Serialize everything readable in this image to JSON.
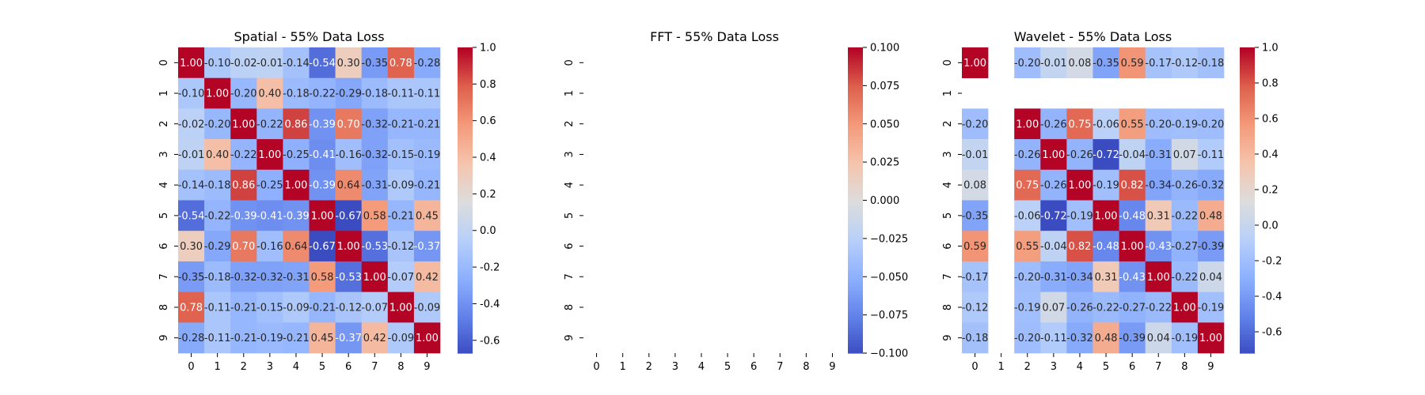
{
  "chart_data": [
    {
      "type": "heatmap",
      "title": "Spatial - 55% Data Loss",
      "xlabel": "",
      "ylabel": "",
      "x": [
        "0",
        "1",
        "2",
        "3",
        "4",
        "5",
        "6",
        "7",
        "8",
        "9"
      ],
      "y": [
        "0",
        "1",
        "2",
        "3",
        "4",
        "5",
        "6",
        "7",
        "8",
        "9"
      ],
      "colormap": "coolwarm",
      "vmin": -0.67,
      "vmax": 1.0,
      "colorbar_ticks": [
        "-0.6",
        "-0.4",
        "-0.2",
        "0.0",
        "0.2",
        "0.4",
        "0.6",
        "0.8",
        "1.0"
      ],
      "annotations_format": "0.00",
      "values": [
        [
          1.0,
          -0.1,
          -0.02,
          -0.01,
          -0.14,
          -0.54,
          0.3,
          -0.35,
          0.78,
          -0.28
        ],
        [
          -0.1,
          1.0,
          -0.2,
          0.4,
          -0.18,
          -0.22,
          -0.29,
          -0.18,
          -0.11,
          -0.11
        ],
        [
          -0.02,
          -0.2,
          1.0,
          -0.22,
          0.86,
          -0.39,
          0.7,
          -0.32,
          -0.21,
          -0.21
        ],
        [
          -0.01,
          0.4,
          -0.22,
          1.0,
          -0.25,
          -0.41,
          -0.16,
          -0.32,
          -0.15,
          -0.19
        ],
        [
          -0.14,
          -0.18,
          0.86,
          -0.25,
          1.0,
          -0.39,
          0.64,
          -0.31,
          -0.09,
          -0.21
        ],
        [
          -0.54,
          -0.22,
          -0.39,
          -0.41,
          -0.39,
          1.0,
          -0.67,
          0.58,
          -0.21,
          0.45
        ],
        [
          0.3,
          -0.29,
          0.7,
          -0.16,
          0.64,
          -0.67,
          1.0,
          -0.53,
          -0.12,
          -0.37
        ],
        [
          -0.35,
          -0.18,
          -0.32,
          -0.32,
          -0.31,
          0.58,
          -0.53,
          1.0,
          -0.07,
          0.42
        ],
        [
          0.78,
          -0.11,
          -0.21,
          -0.15,
          -0.09,
          -0.21,
          -0.12,
          -0.07,
          1.0,
          -0.09
        ],
        [
          -0.28,
          -0.11,
          -0.21,
          -0.19,
          -0.21,
          0.45,
          -0.37,
          0.42,
          -0.09,
          1.0
        ]
      ]
    },
    {
      "type": "heatmap",
      "title": "FFT - 55% Data Loss",
      "xlabel": "",
      "ylabel": "",
      "x": [
        "0",
        "1",
        "2",
        "3",
        "4",
        "5",
        "6",
        "7",
        "8",
        "9"
      ],
      "y": [
        "0",
        "1",
        "2",
        "3",
        "4",
        "5",
        "6",
        "7",
        "8",
        "9"
      ],
      "colormap": "coolwarm",
      "vmin": -0.1,
      "vmax": 0.1,
      "colorbar_ticks": [
        "−0.100",
        "−0.075",
        "−0.050",
        "−0.025",
        "0.000",
        "0.025",
        "0.050",
        "0.075",
        "0.100"
      ],
      "annotations_format": "0.00",
      "values": [
        [
          null,
          null,
          null,
          null,
          null,
          null,
          null,
          null,
          null,
          null
        ],
        [
          null,
          null,
          null,
          null,
          null,
          null,
          null,
          null,
          null,
          null
        ],
        [
          null,
          null,
          null,
          null,
          null,
          null,
          null,
          null,
          null,
          null
        ],
        [
          null,
          null,
          null,
          null,
          null,
          null,
          null,
          null,
          null,
          null
        ],
        [
          null,
          null,
          null,
          null,
          null,
          null,
          null,
          null,
          null,
          null
        ],
        [
          null,
          null,
          null,
          null,
          null,
          null,
          null,
          null,
          null,
          null
        ],
        [
          null,
          null,
          null,
          null,
          null,
          null,
          null,
          null,
          null,
          null
        ],
        [
          null,
          null,
          null,
          null,
          null,
          null,
          null,
          null,
          null,
          null
        ],
        [
          null,
          null,
          null,
          null,
          null,
          null,
          null,
          null,
          null,
          null
        ],
        [
          null,
          null,
          null,
          null,
          null,
          null,
          null,
          null,
          null,
          null
        ]
      ]
    },
    {
      "type": "heatmap",
      "title": "Wavelet - 55% Data Loss",
      "xlabel": "",
      "ylabel": "",
      "x": [
        "0",
        "1",
        "2",
        "3",
        "4",
        "5",
        "6",
        "7",
        "8",
        "9"
      ],
      "y": [
        "0",
        "1",
        "2",
        "3",
        "4",
        "5",
        "6",
        "7",
        "8",
        "9"
      ],
      "colormap": "coolwarm",
      "vmin": -0.72,
      "vmax": 1.0,
      "colorbar_ticks": [
        "-0.6",
        "-0.4",
        "-0.2",
        "0.0",
        "0.2",
        "0.4",
        "0.6",
        "0.8",
        "1.0"
      ],
      "annotations_format": "0.00",
      "values": [
        [
          1.0,
          null,
          -0.2,
          -0.01,
          0.08,
          -0.35,
          0.59,
          -0.17,
          -0.12,
          -0.18
        ],
        [
          null,
          null,
          null,
          null,
          null,
          null,
          null,
          null,
          null,
          null
        ],
        [
          -0.2,
          null,
          1.0,
          -0.26,
          0.75,
          -0.06,
          0.55,
          -0.2,
          -0.19,
          -0.2
        ],
        [
          -0.01,
          null,
          -0.26,
          1.0,
          -0.26,
          -0.72,
          -0.04,
          -0.31,
          0.07,
          -0.11
        ],
        [
          0.08,
          null,
          0.75,
          -0.26,
          1.0,
          -0.19,
          0.82,
          -0.34,
          -0.26,
          -0.32
        ],
        [
          -0.35,
          null,
          -0.06,
          -0.72,
          -0.19,
          1.0,
          -0.48,
          0.31,
          -0.22,
          0.48
        ],
        [
          0.59,
          null,
          0.55,
          -0.04,
          0.82,
          -0.48,
          1.0,
          -0.43,
          -0.27,
          -0.39
        ],
        [
          -0.17,
          null,
          -0.2,
          -0.31,
          -0.34,
          0.31,
          -0.43,
          1.0,
          -0.22,
          0.04
        ],
        [
          -0.12,
          null,
          -0.19,
          0.07,
          -0.26,
          -0.22,
          -0.27,
          -0.22,
          1.0,
          -0.19
        ],
        [
          -0.18,
          null,
          -0.2,
          -0.11,
          -0.32,
          0.48,
          -0.39,
          0.04,
          -0.19,
          1.0
        ]
      ]
    }
  ]
}
